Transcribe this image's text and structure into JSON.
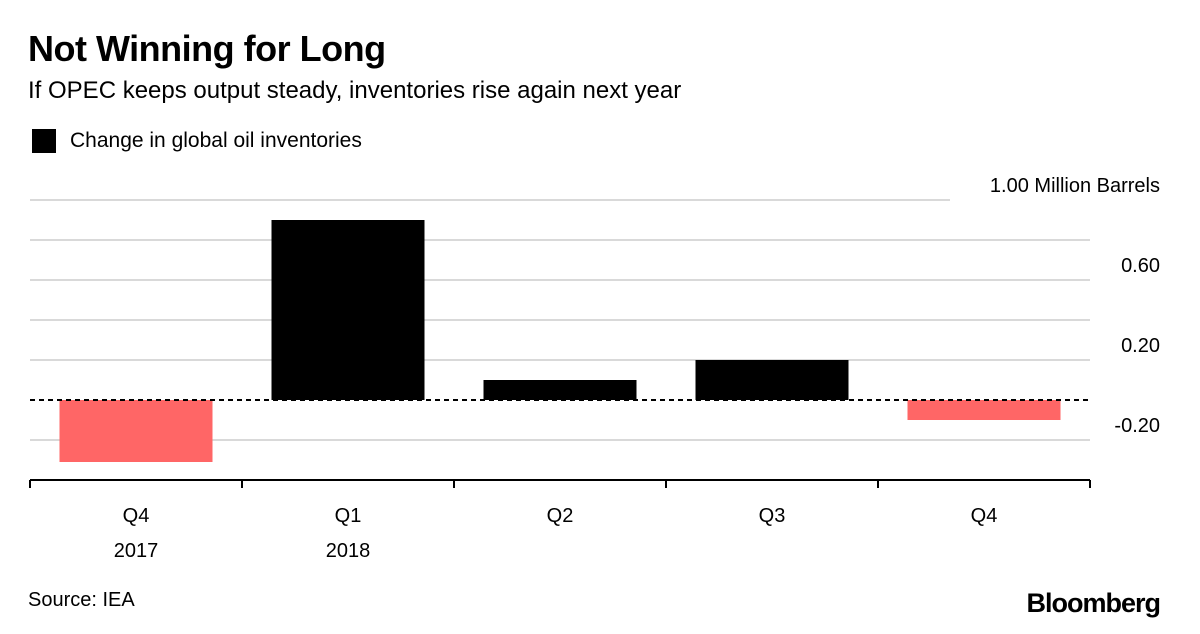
{
  "header": {
    "title": "Not Winning for Long",
    "subtitle": "If OPEC keeps output steady, inventories rise again next year"
  },
  "legend": {
    "label": "Change in global oil inventories",
    "color": "#000000"
  },
  "footer": {
    "source": "Source: IEA",
    "brand": "Bloomberg"
  },
  "colors": {
    "positive": "#000000",
    "negative": "#ff6666",
    "grid": "#d9d9d9",
    "zero_line": "#000000"
  },
  "chart_data": {
    "type": "bar",
    "title": "Not Winning for Long",
    "subtitle": "If OPEC keeps output steady, inventories rise again next year",
    "unit_label": "Million Barrels",
    "categories": [
      "Q4",
      "Q1",
      "Q2",
      "Q3",
      "Q4"
    ],
    "category_years": [
      "2017",
      "2018",
      "",
      "",
      ""
    ],
    "values": [
      -0.31,
      0.9,
      0.1,
      0.2,
      -0.1
    ],
    "series": [
      {
        "name": "Change in global oil inventories",
        "values": [
          -0.31,
          0.9,
          0.1,
          0.2,
          -0.1
        ]
      }
    ],
    "ylim": [
      -0.4,
      1.0
    ],
    "yticks": [
      -0.2,
      0.2,
      0.6,
      1.0
    ],
    "ytick_labels": [
      "-0.20",
      "0.20",
      "0.60",
      "1.00 Million Barrels"
    ],
    "gridlines": [
      -0.2,
      0.2,
      0.4,
      0.6,
      0.8,
      1.0
    ],
    "zero_line": "dashed",
    "grid": true,
    "xlabel": "",
    "ylabel": ""
  }
}
